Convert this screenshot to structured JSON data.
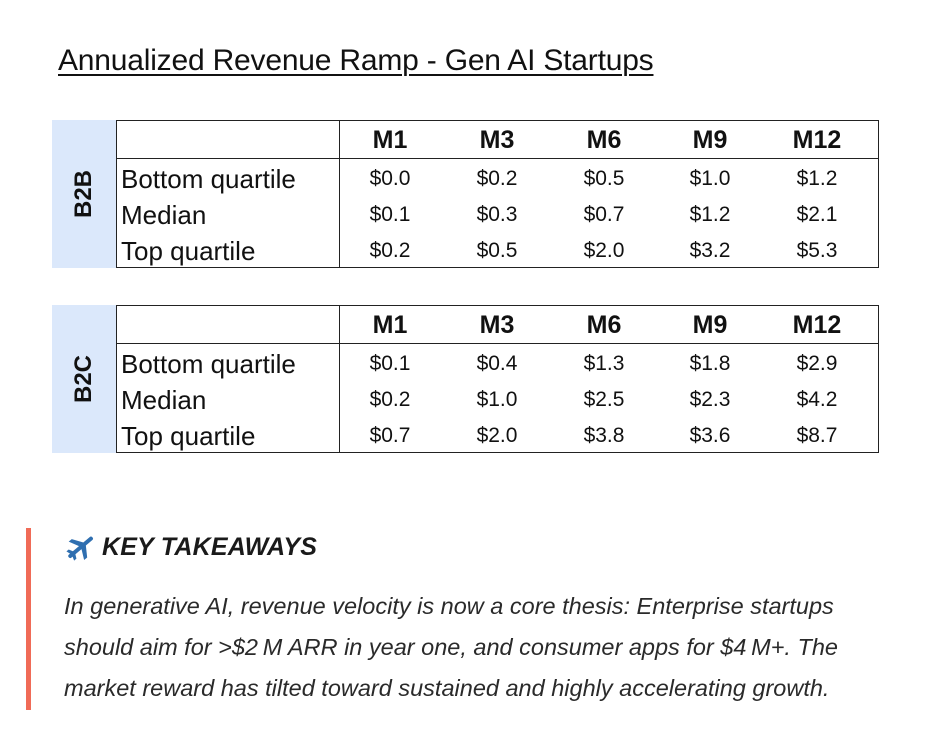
{
  "title": "Annualized Revenue Ramp - Gen AI Startups",
  "columns": [
    "M1",
    "M3",
    "M6",
    "M9",
    "M12"
  ],
  "tables": [
    {
      "segment": "B2B",
      "rows": [
        {
          "label": "Bottom quartile",
          "values": [
            "$0.0",
            "$0.2",
            "$0.5",
            "$1.0",
            "$1.2"
          ]
        },
        {
          "label": "Median",
          "values": [
            "$0.1",
            "$0.3",
            "$0.7",
            "$1.2",
            "$2.1"
          ]
        },
        {
          "label": "Top quartile",
          "values": [
            "$0.2",
            "$0.5",
            "$2.0",
            "$3.2",
            "$5.3"
          ]
        }
      ]
    },
    {
      "segment": "B2C",
      "rows": [
        {
          "label": "Bottom quartile",
          "values": [
            "$0.1",
            "$0.4",
            "$1.3",
            "$1.8",
            "$2.9"
          ]
        },
        {
          "label": "Median",
          "values": [
            "$0.2",
            "$1.0",
            "$2.5",
            "$2.3",
            "$4.2"
          ]
        },
        {
          "label": "Top quartile",
          "values": [
            "$0.7",
            "$2.0",
            "$3.8",
            "$3.6",
            "$8.7"
          ]
        }
      ]
    }
  ],
  "takeaway": {
    "icon": "airplane-icon",
    "heading": "KEY TAKEAWAYS",
    "line1": "In generative AI, revenue velocity is now a core thesis: Enterprise startups",
    "line2": "should aim for >$2 M ARR in year one, and consumer apps for $4 M+. The",
    "line3": "market reward has tilted toward sustained and highly accelerating growth."
  },
  "colors": {
    "segment_band": "#dbe8fb",
    "accent_bar": "#f06b57",
    "plane": "#2f6fb0"
  }
}
